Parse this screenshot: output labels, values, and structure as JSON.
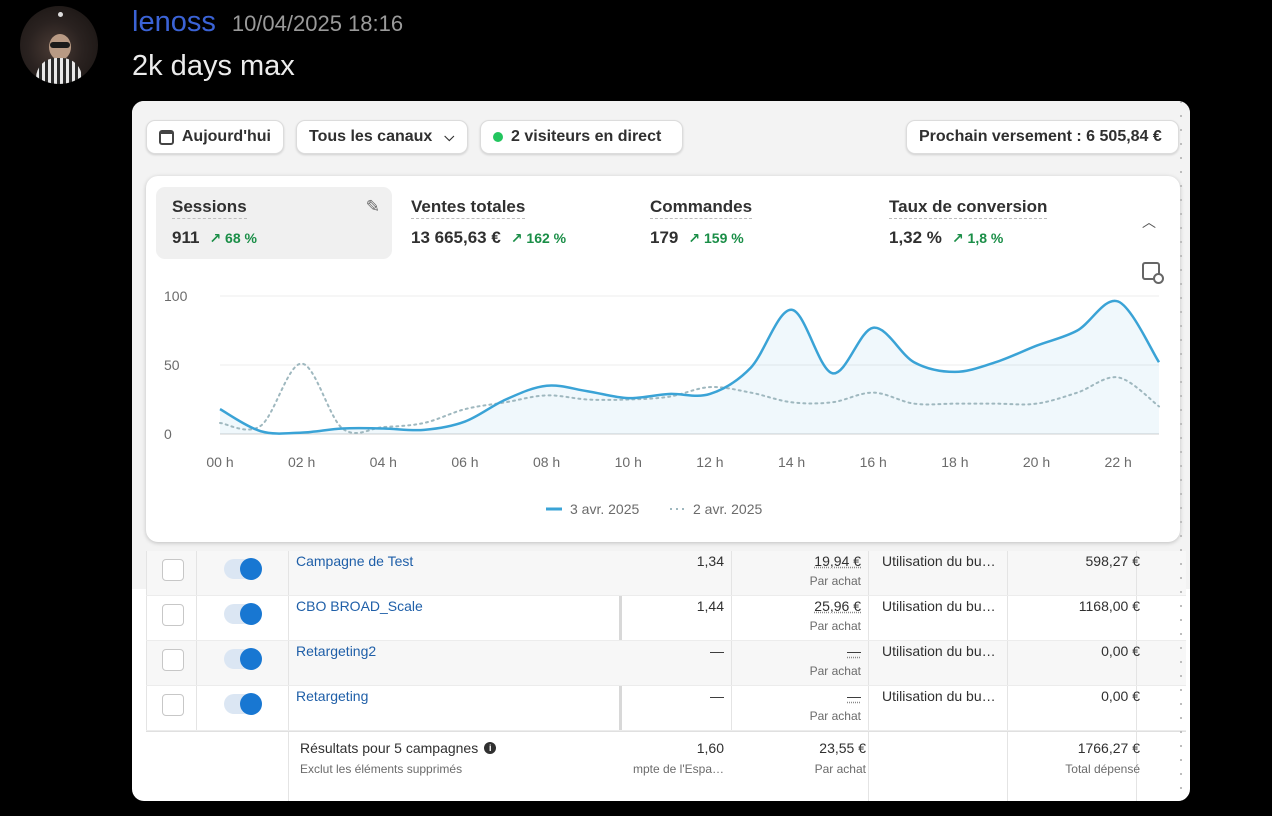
{
  "message": {
    "username": "lenoss",
    "timestamp": "10/04/2025 18:16",
    "text": "2k days max"
  },
  "toolbar": {
    "date_label": "Aujourd'hui",
    "channels_label": "Tous les canaux",
    "live_label": "2 visiteurs en direct",
    "payout_label": "Prochain versement : 6 505,84 €"
  },
  "metrics": [
    {
      "label": "Sessions",
      "value": "911",
      "change": "↗ 68 %"
    },
    {
      "label": "Ventes totales",
      "value": "13 665,63 €",
      "change": "↗ 162 %"
    },
    {
      "label": "Commandes",
      "value": "179",
      "change": "↗ 159 %"
    },
    {
      "label": "Taux de conversion",
      "value": "1,32 %",
      "change": "↗ 1,8 %"
    }
  ],
  "chart_data": {
    "type": "line",
    "x": [
      "00 h",
      "01 h",
      "02 h",
      "03 h",
      "04 h",
      "05 h",
      "06 h",
      "07 h",
      "08 h",
      "09 h",
      "10 h",
      "11 h",
      "12 h",
      "13 h",
      "14 h",
      "15 h",
      "16 h",
      "17 h",
      "18 h",
      "19 h",
      "20 h",
      "21 h",
      "22 h",
      "23 h"
    ],
    "xticks": [
      "00 h",
      "02 h",
      "04 h",
      "06 h",
      "08 h",
      "10 h",
      "12 h",
      "14 h",
      "16 h",
      "18 h",
      "20 h",
      "22 h"
    ],
    "yticks": [
      "100",
      "50",
      "0"
    ],
    "ylim": [
      0,
      100
    ],
    "series": [
      {
        "name": "3 avr. 2025",
        "style": "solid",
        "color": "#3aa3d6",
        "values": [
          18,
          2,
          1,
          4,
          4,
          3,
          9,
          25,
          35,
          31,
          26,
          29,
          29,
          48,
          90,
          44,
          77,
          52,
          45,
          52,
          64,
          75,
          96,
          52
        ]
      },
      {
        "name": "2 avr. 2025",
        "style": "dotted",
        "color": "#9fb8bf",
        "values": [
          8,
          6,
          51,
          4,
          5,
          8,
          18,
          23,
          28,
          25,
          25,
          27,
          34,
          30,
          23,
          23,
          30,
          22,
          22,
          22,
          22,
          30,
          41,
          20
        ]
      }
    ],
    "legend_position": "bottom-center",
    "grid": true
  },
  "table": {
    "rows": [
      {
        "name": "Campagne de Test",
        "rate": "1,34",
        "cost": "19,94 €",
        "cost_sub": "Par achat",
        "budget": "Utilisation du bu…",
        "spent": "598,27 €"
      },
      {
        "name": "CBO BROAD_Scale",
        "rate": "1,44",
        "cost": "25,96 €",
        "cost_sub": "Par achat",
        "budget": "Utilisation du bu…",
        "spent": "1168,00 €"
      },
      {
        "name": "Retargeting2",
        "rate": "—",
        "cost": "—",
        "cost_sub": "Par achat",
        "budget": "Utilisation du bu…",
        "spent": "0,00 €"
      },
      {
        "name": "Retargeting",
        "rate": "—",
        "cost": "—",
        "cost_sub": "Par achat",
        "budget": "Utilisation du bu…",
        "spent": "0,00 €"
      }
    ],
    "summary": {
      "title": "Résultats pour 5 campagnes",
      "subtitle": "Exclut les éléments supprimés",
      "rate": "1,60",
      "rate_sub": "mpte de l'Espa…",
      "cost": "23,55 €",
      "cost_sub": "Par achat",
      "spent": "1766,27 €",
      "spent_sub": "Total dépensé"
    }
  }
}
